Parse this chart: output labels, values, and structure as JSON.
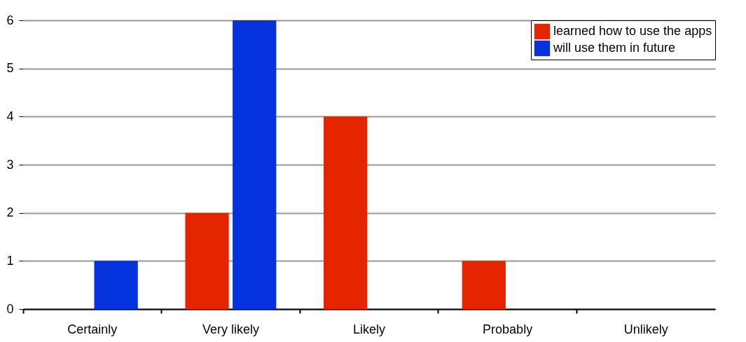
{
  "chart_data": {
    "type": "bar",
    "categories": [
      "Certainly",
      "Very likely",
      "Likely",
      "Probably",
      "Unlikely"
    ],
    "series": [
      {
        "name": "learned how to use the apps",
        "color": "#e52400",
        "values": [
          0,
          2,
          4,
          1,
          0
        ]
      },
      {
        "name": "will use them in future",
        "color": "#0432dc",
        "values": [
          1,
          6,
          0,
          0,
          0
        ]
      }
    ],
    "ylim": [
      0,
      6
    ],
    "yticks": [
      0,
      1,
      2,
      3,
      4,
      5,
      6
    ],
    "grid": "y",
    "legend": "top right"
  }
}
